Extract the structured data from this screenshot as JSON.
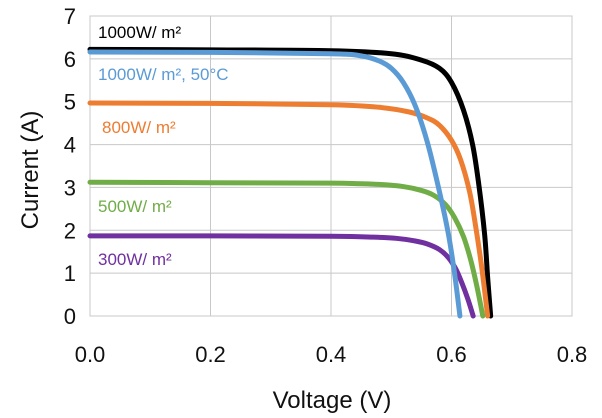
{
  "chart_data": {
    "type": "line",
    "title": "",
    "xlabel": "Voltage (V)",
    "ylabel": "Current (A)",
    "xlim": [
      0.0,
      0.8
    ],
    "ylim": [
      0,
      7
    ],
    "xticks": [
      0.0,
      0.2,
      0.4,
      0.6,
      0.8
    ],
    "xtick_labels": [
      "0.0",
      "0.2",
      "0.4",
      "0.6",
      "0.8"
    ],
    "yticks": [
      0,
      1,
      2,
      3,
      4,
      5,
      6,
      7
    ],
    "ytick_labels": [
      "0",
      "1",
      "2",
      "3",
      "4",
      "5",
      "6",
      "7"
    ],
    "grid": true,
    "legend": "inline labels",
    "series": [
      {
        "name": "1000W/ m²",
        "color": "#000000",
        "x": [
          0.0,
          0.2,
          0.4,
          0.5,
          0.55,
          0.58,
          0.6,
          0.62,
          0.635,
          0.645,
          0.655,
          0.66,
          0.665
        ],
        "y": [
          6.22,
          6.21,
          6.19,
          6.12,
          5.97,
          5.78,
          5.45,
          4.8,
          4.0,
          3.1,
          1.9,
          0.9,
          0.0
        ]
      },
      {
        "name": "1000W/ m², 50°C",
        "color": "#5b9bd5",
        "x": [
          0.0,
          0.2,
          0.4,
          0.45,
          0.48,
          0.5,
          0.52,
          0.54,
          0.56,
          0.58,
          0.595,
          0.605,
          0.614
        ],
        "y": [
          6.16,
          6.15,
          6.12,
          6.07,
          5.95,
          5.78,
          5.45,
          4.9,
          4.05,
          2.9,
          1.9,
          1.0,
          0.0
        ]
      },
      {
        "name": "800W/ m²",
        "color": "#ed7d31",
        "x": [
          0.0,
          0.2,
          0.4,
          0.48,
          0.53,
          0.56,
          0.58,
          0.6,
          0.615,
          0.63,
          0.64,
          0.65,
          0.66
        ],
        "y": [
          4.97,
          4.96,
          4.93,
          4.87,
          4.76,
          4.62,
          4.45,
          4.1,
          3.65,
          2.9,
          2.1,
          1.15,
          0.0
        ]
      },
      {
        "name": "500W/ m²",
        "color": "#70ad47",
        "x": [
          0.0,
          0.2,
          0.4,
          0.48,
          0.52,
          0.55,
          0.57,
          0.59,
          0.605,
          0.62,
          0.632,
          0.642,
          0.652
        ],
        "y": [
          3.12,
          3.11,
          3.1,
          3.07,
          3.02,
          2.93,
          2.82,
          2.6,
          2.3,
          1.85,
          1.3,
          0.7,
          0.0
        ]
      },
      {
        "name": "300W/ m²",
        "color": "#7030a0",
        "x": [
          0.0,
          0.2,
          0.4,
          0.47,
          0.51,
          0.54,
          0.56,
          0.58,
          0.595,
          0.607,
          0.617,
          0.627,
          0.636
        ],
        "y": [
          1.87,
          1.87,
          1.86,
          1.84,
          1.81,
          1.75,
          1.68,
          1.55,
          1.36,
          1.1,
          0.78,
          0.4,
          0.0
        ]
      }
    ]
  }
}
